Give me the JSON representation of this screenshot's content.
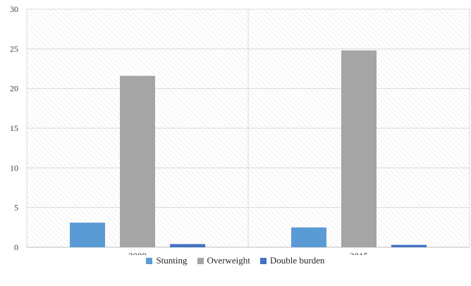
{
  "chart_data": {
    "type": "bar",
    "categories": [
      "2009",
      "2015"
    ],
    "series": [
      {
        "name": "Stunting",
        "values": [
          3.1,
          2.5
        ],
        "color": "#5B9BD5"
      },
      {
        "name": "Overweight",
        "values": [
          21.6,
          24.8
        ],
        "color": "#A5A5A5"
      },
      {
        "name": "Double burden",
        "values": [
          0.4,
          0.3
        ],
        "color": "#4472C4"
      }
    ],
    "yticks": [
      "0",
      "5",
      "10",
      "15",
      "20",
      "25",
      "30"
    ],
    "ylim": [
      0,
      30
    ],
    "grid": true,
    "legend_position": "bottom",
    "title": "",
    "xlabel": "",
    "ylabel": ""
  }
}
